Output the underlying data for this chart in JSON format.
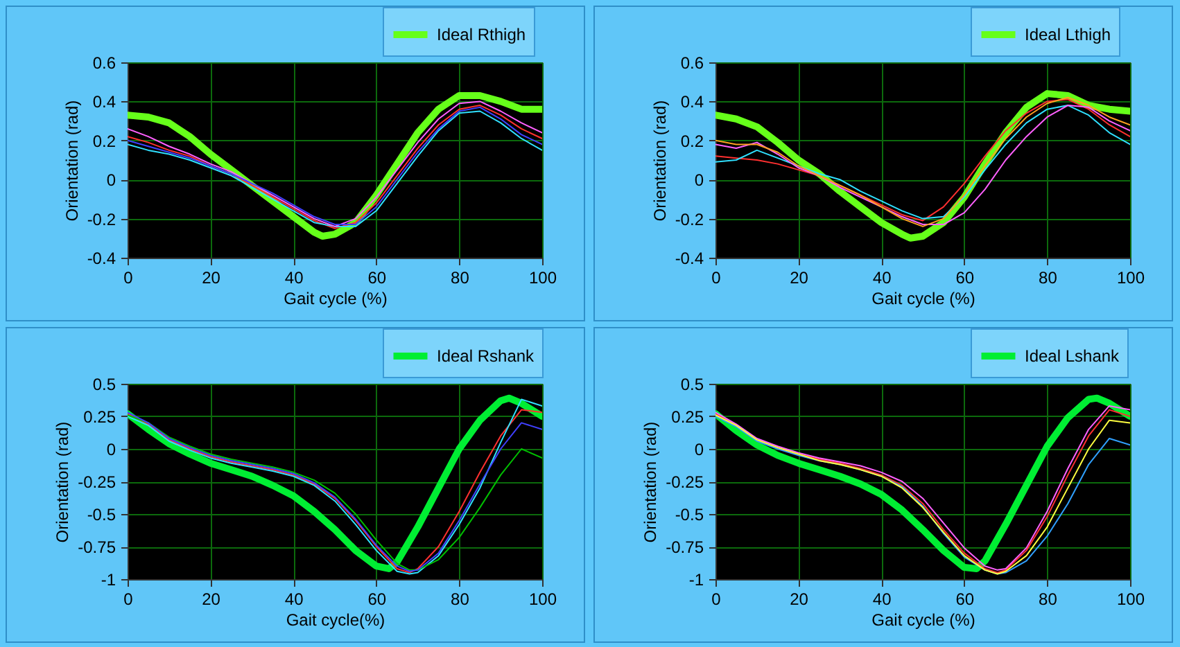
{
  "chart_data": [
    {
      "type": "line",
      "xlabel": "Gait cycle (%)",
      "ylabel": "Orientation (rad)",
      "xlim": [
        0,
        100
      ],
      "xticks": [
        0,
        20,
        40,
        60,
        80,
        100
      ],
      "ylim": [
        -0.4,
        0.6
      ],
      "yticks": [
        -0.4,
        -0.2,
        0,
        0.2,
        0.4,
        0.6
      ],
      "grid": true,
      "legend": "top right",
      "series": [
        {
          "color": "#ff3030",
          "x": [
            0,
            5,
            10,
            15,
            20,
            25,
            30,
            35,
            40,
            45,
            50,
            55,
            60,
            65,
            70,
            75,
            80,
            85,
            90,
            95,
            100
          ],
          "values": [
            0.22,
            0.19,
            0.15,
            0.12,
            0.07,
            0.03,
            -0.03,
            -0.09,
            -0.15,
            -0.21,
            -0.25,
            -0.22,
            -0.12,
            0.02,
            0.16,
            0.28,
            0.36,
            0.38,
            0.33,
            0.26,
            0.21
          ]
        },
        {
          "color": "#30e0ff",
          "x": [
            0,
            5,
            10,
            15,
            20,
            25,
            30,
            35,
            40,
            45,
            50,
            55,
            60,
            65,
            70,
            75,
            80,
            85,
            90,
            95,
            100
          ],
          "values": [
            0.18,
            0.15,
            0.13,
            0.1,
            0.06,
            0.02,
            -0.04,
            -0.1,
            -0.16,
            -0.22,
            -0.24,
            -0.24,
            -0.16,
            -0.02,
            0.12,
            0.25,
            0.34,
            0.35,
            0.29,
            0.21,
            0.15
          ]
        },
        {
          "color": "#ff60ff",
          "x": [
            0,
            5,
            10,
            15,
            20,
            25,
            30,
            35,
            40,
            45,
            50,
            55,
            60,
            65,
            70,
            75,
            80,
            85,
            90,
            95,
            100
          ],
          "values": [
            0.26,
            0.22,
            0.17,
            0.13,
            0.08,
            0.04,
            -0.02,
            -0.08,
            -0.14,
            -0.2,
            -0.24,
            -0.2,
            -0.09,
            0.05,
            0.19,
            0.31,
            0.39,
            0.4,
            0.35,
            0.29,
            0.24
          ]
        },
        {
          "color": "#4040ff",
          "x": [
            0,
            5,
            10,
            15,
            20,
            25,
            30,
            35,
            40,
            45,
            50,
            55,
            60,
            65,
            70,
            75,
            80,
            85,
            90,
            95,
            100
          ],
          "values": [
            0.2,
            0.17,
            0.14,
            0.11,
            0.07,
            0.03,
            -0.02,
            -0.07,
            -0.13,
            -0.19,
            -0.23,
            -0.23,
            -0.14,
            0.0,
            0.14,
            0.26,
            0.35,
            0.37,
            0.31,
            0.23,
            0.18
          ]
        },
        {
          "name": "Ideal Rthigh",
          "color": "#66ff1a",
          "x": [
            0,
            5,
            10,
            15,
            20,
            25,
            30,
            35,
            40,
            45,
            47,
            50,
            55,
            60,
            65,
            70,
            75,
            80,
            85,
            90,
            95,
            100
          ],
          "values": [
            0.33,
            0.32,
            0.29,
            0.22,
            0.13,
            0.05,
            -0.03,
            -0.11,
            -0.19,
            -0.27,
            -0.29,
            -0.28,
            -0.22,
            -0.08,
            0.08,
            0.24,
            0.36,
            0.43,
            0.43,
            0.4,
            0.36,
            0.36
          ]
        }
      ]
    },
    {
      "type": "line",
      "xlabel": "Gait cycle (%)",
      "ylabel": "Orientation (rad)",
      "xlim": [
        0,
        100
      ],
      "xticks": [
        0,
        20,
        40,
        60,
        80,
        100
      ],
      "ylim": [
        -0.4,
        0.6
      ],
      "yticks": [
        -0.4,
        -0.2,
        0,
        0.2,
        0.4,
        0.6
      ],
      "grid": true,
      "legend": "top right",
      "series": [
        {
          "color": "#ff3030",
          "x": [
            0,
            5,
            10,
            15,
            20,
            25,
            30,
            35,
            40,
            45,
            50,
            55,
            60,
            65,
            70,
            75,
            80,
            85,
            90,
            95,
            100
          ],
          "values": [
            0.12,
            0.11,
            0.1,
            0.08,
            0.05,
            0.02,
            -0.03,
            -0.08,
            -0.13,
            -0.18,
            -0.21,
            -0.14,
            -0.02,
            0.12,
            0.25,
            0.34,
            0.4,
            0.41,
            0.36,
            0.28,
            0.22
          ]
        },
        {
          "color": "#30e0ff",
          "x": [
            0,
            5,
            10,
            15,
            20,
            25,
            30,
            35,
            40,
            45,
            50,
            55,
            60,
            65,
            70,
            75,
            80,
            85,
            90,
            95,
            100
          ],
          "values": [
            0.09,
            0.1,
            0.15,
            0.11,
            0.07,
            0.03,
            0.0,
            -0.06,
            -0.11,
            -0.16,
            -0.2,
            -0.19,
            -0.09,
            0.05,
            0.18,
            0.29,
            0.36,
            0.38,
            0.33,
            0.24,
            0.18
          ]
        },
        {
          "color": "#ff60ff",
          "x": [
            0,
            5,
            10,
            15,
            20,
            25,
            30,
            35,
            40,
            45,
            50,
            55,
            60,
            65,
            70,
            75,
            80,
            85,
            90,
            95,
            100
          ],
          "values": [
            0.18,
            0.16,
            0.19,
            0.13,
            0.06,
            0.02,
            -0.04,
            -0.09,
            -0.14,
            -0.19,
            -0.23,
            -0.23,
            -0.17,
            -0.05,
            0.1,
            0.22,
            0.32,
            0.38,
            0.37,
            0.3,
            0.25
          ]
        },
        {
          "color": "#ffa020",
          "x": [
            0,
            5,
            10,
            15,
            20,
            25,
            30,
            35,
            40,
            45,
            50,
            55,
            60,
            65,
            70,
            75,
            80,
            85,
            90,
            95,
            100
          ],
          "values": [
            0.2,
            0.18,
            0.18,
            0.14,
            0.07,
            0.02,
            -0.03,
            -0.08,
            -0.14,
            -0.2,
            -0.24,
            -0.2,
            -0.08,
            0.07,
            0.21,
            0.32,
            0.39,
            0.42,
            0.38,
            0.32,
            0.28
          ]
        },
        {
          "name": "Ideal Lthigh",
          "color": "#66ff1a",
          "x": [
            0,
            5,
            10,
            15,
            20,
            25,
            30,
            35,
            40,
            45,
            47,
            50,
            55,
            60,
            65,
            70,
            75,
            80,
            85,
            90,
            95,
            100
          ],
          "values": [
            0.33,
            0.31,
            0.27,
            0.19,
            0.1,
            0.03,
            -0.06,
            -0.14,
            -0.22,
            -0.28,
            -0.3,
            -0.29,
            -0.22,
            -0.09,
            0.08,
            0.24,
            0.37,
            0.44,
            0.43,
            0.38,
            0.36,
            0.35
          ]
        }
      ]
    },
    {
      "type": "line",
      "xlabel": "Gait cycle(%)",
      "ylabel": "Orientation (rad)",
      "xlim": [
        0,
        100
      ],
      "xticks": [
        0,
        20,
        40,
        60,
        80,
        100
      ],
      "ylim": [
        -1,
        0.5
      ],
      "yticks": [
        -1,
        -0.75,
        -0.5,
        -0.25,
        0,
        0.25,
        0.5
      ],
      "grid": true,
      "legend": "top right",
      "series": [
        {
          "color": "#ff3030",
          "x": [
            0,
            5,
            10,
            15,
            20,
            25,
            30,
            35,
            40,
            45,
            50,
            55,
            60,
            65,
            68,
            70,
            75,
            80,
            85,
            90,
            95,
            100
          ],
          "values": [
            0.27,
            0.19,
            0.07,
            0.0,
            -0.06,
            -0.1,
            -0.13,
            -0.16,
            -0.2,
            -0.27,
            -0.38,
            -0.55,
            -0.75,
            -0.92,
            -0.95,
            -0.92,
            -0.75,
            -0.48,
            -0.18,
            0.1,
            0.3,
            0.28
          ]
        },
        {
          "color": "#30e0ff",
          "x": [
            0,
            5,
            10,
            15,
            20,
            25,
            30,
            35,
            40,
            45,
            50,
            55,
            60,
            65,
            68,
            70,
            75,
            80,
            85,
            90,
            95,
            100
          ],
          "values": [
            0.25,
            0.18,
            0.06,
            -0.01,
            -0.07,
            -0.11,
            -0.14,
            -0.17,
            -0.21,
            -0.28,
            -0.4,
            -0.58,
            -0.78,
            -0.94,
            -0.96,
            -0.95,
            -0.82,
            -0.58,
            -0.3,
            0.05,
            0.38,
            0.33
          ]
        },
        {
          "color": "#00c000",
          "x": [
            0,
            5,
            10,
            15,
            20,
            25,
            30,
            35,
            40,
            45,
            50,
            55,
            60,
            65,
            68,
            70,
            75,
            80,
            85,
            90,
            95,
            100
          ],
          "values": [
            0.26,
            0.2,
            0.09,
            0.02,
            -0.04,
            -0.08,
            -0.11,
            -0.14,
            -0.18,
            -0.24,
            -0.34,
            -0.5,
            -0.7,
            -0.88,
            -0.93,
            -0.93,
            -0.85,
            -0.68,
            -0.45,
            -0.2,
            0.0,
            -0.07
          ]
        },
        {
          "color": "#4040ff",
          "x": [
            0,
            5,
            10,
            15,
            20,
            25,
            30,
            35,
            40,
            45,
            50,
            55,
            60,
            65,
            68,
            70,
            75,
            80,
            85,
            90,
            95,
            100
          ],
          "values": [
            0.28,
            0.2,
            0.08,
            0.01,
            -0.05,
            -0.09,
            -0.12,
            -0.15,
            -0.19,
            -0.26,
            -0.37,
            -0.54,
            -0.74,
            -0.9,
            -0.94,
            -0.93,
            -0.8,
            -0.55,
            -0.27,
            0.0,
            0.2,
            0.15
          ]
        },
        {
          "name": "Ideal Rshank",
          "color": "#00ee33",
          "x": [
            0,
            5,
            10,
            15,
            20,
            25,
            30,
            35,
            40,
            45,
            50,
            55,
            60,
            63,
            65,
            70,
            75,
            80,
            85,
            90,
            92,
            95,
            100
          ],
          "values": [
            0.27,
            0.15,
            0.04,
            -0.04,
            -0.11,
            -0.16,
            -0.21,
            -0.28,
            -0.36,
            -0.48,
            -0.62,
            -0.78,
            -0.9,
            -0.92,
            -0.87,
            -0.6,
            -0.3,
            0.0,
            0.22,
            0.37,
            0.39,
            0.35,
            0.25
          ]
        }
      ]
    },
    {
      "type": "line",
      "xlabel": "Gait cycle (%)",
      "ylabel": "Orientation (rad)",
      "xlim": [
        0,
        100
      ],
      "xticks": [
        0,
        20,
        40,
        60,
        80,
        100
      ],
      "ylim": [
        -1,
        0.5
      ],
      "yticks": [
        -1,
        -0.75,
        -0.5,
        -0.25,
        0,
        0.25,
        0.5
      ],
      "grid": true,
      "legend": "top right",
      "series": [
        {
          "color": "#ff3030",
          "x": [
            0,
            5,
            10,
            15,
            20,
            25,
            30,
            35,
            40,
            45,
            50,
            55,
            60,
            65,
            68,
            70,
            75,
            80,
            85,
            90,
            95,
            100
          ],
          "values": [
            0.27,
            0.18,
            0.07,
            0.01,
            -0.04,
            -0.08,
            -0.11,
            -0.15,
            -0.2,
            -0.28,
            -0.42,
            -0.62,
            -0.8,
            -0.92,
            -0.95,
            -0.93,
            -0.78,
            -0.52,
            -0.2,
            0.1,
            0.3,
            0.25
          ]
        },
        {
          "color": "#30a0ff",
          "x": [
            0,
            5,
            10,
            15,
            20,
            25,
            30,
            35,
            40,
            45,
            50,
            55,
            60,
            65,
            68,
            70,
            75,
            80,
            85,
            90,
            95,
            100
          ],
          "values": [
            0.25,
            0.17,
            0.06,
            0.0,
            -0.05,
            -0.09,
            -0.12,
            -0.16,
            -0.21,
            -0.29,
            -0.44,
            -0.65,
            -0.83,
            -0.93,
            -0.96,
            -0.95,
            -0.86,
            -0.67,
            -0.42,
            -0.12,
            0.08,
            0.03
          ]
        },
        {
          "color": "#ff60ff",
          "x": [
            0,
            5,
            10,
            15,
            20,
            25,
            30,
            35,
            40,
            45,
            50,
            55,
            60,
            65,
            68,
            70,
            75,
            80,
            85,
            90,
            95,
            100
          ],
          "values": [
            0.28,
            0.19,
            0.08,
            0.02,
            -0.03,
            -0.07,
            -0.1,
            -0.13,
            -0.18,
            -0.25,
            -0.38,
            -0.57,
            -0.76,
            -0.9,
            -0.93,
            -0.92,
            -0.76,
            -0.48,
            -0.15,
            0.15,
            0.33,
            0.3
          ]
        },
        {
          "color": "#ffff40",
          "x": [
            0,
            5,
            10,
            15,
            20,
            25,
            30,
            35,
            40,
            45,
            50,
            55,
            60,
            65,
            68,
            70,
            75,
            80,
            85,
            90,
            95,
            100
          ],
          "values": [
            0.26,
            0.18,
            0.07,
            0.01,
            -0.04,
            -0.09,
            -0.12,
            -0.16,
            -0.21,
            -0.3,
            -0.45,
            -0.64,
            -0.82,
            -0.93,
            -0.96,
            -0.94,
            -0.82,
            -0.6,
            -0.3,
            0.0,
            0.22,
            0.2
          ]
        },
        {
          "name": "Ideal Lshank",
          "color": "#00ee33",
          "x": [
            0,
            5,
            10,
            15,
            20,
            25,
            30,
            35,
            40,
            45,
            50,
            55,
            60,
            63,
            65,
            70,
            75,
            80,
            85,
            90,
            92,
            95,
            100
          ],
          "values": [
            0.27,
            0.14,
            0.03,
            -0.05,
            -0.11,
            -0.16,
            -0.21,
            -0.27,
            -0.35,
            -0.47,
            -0.62,
            -0.78,
            -0.91,
            -0.92,
            -0.86,
            -0.58,
            -0.28,
            0.02,
            0.24,
            0.38,
            0.39,
            0.35,
            0.25
          ]
        }
      ]
    }
  ]
}
